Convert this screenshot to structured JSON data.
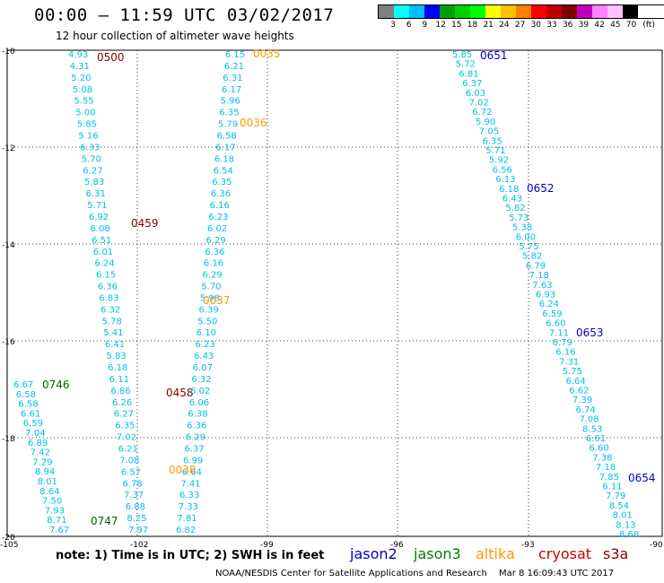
{
  "header": {
    "title": "00:00 – 11:59 UTC 03/02/2017",
    "subtitle": "12 hour collection of altimeter wave heights"
  },
  "legend": {
    "unit": "(ft)",
    "colors": [
      "#808080",
      "#00ffff",
      "#00bfff",
      "#0000ff",
      "#00a000",
      "#00d000",
      "#00ff00",
      "#ffff00",
      "#ffc000",
      "#ff8000",
      "#ff0000",
      "#c00000",
      "#800000",
      "#c000c0",
      "#ff80ff",
      "#ffc0ff",
      "#000000"
    ],
    "labels": [
      "3",
      "6",
      "9",
      "12",
      "15",
      "18",
      "21",
      "24",
      "27",
      "30",
      "33",
      "36",
      "39",
      "42",
      "45",
      "70"
    ]
  },
  "axes": {
    "lat_labels": [
      "-10",
      "-12",
      "-14",
      "-16",
      "-18",
      "-20"
    ],
    "lon_labels": [
      "-105",
      "-102",
      "-99",
      "-96",
      "-93",
      "-90"
    ]
  },
  "tracks": [
    {
      "time_labels": [
        {
          "text": "0500",
          "color": "#800000"
        },
        {
          "text": "0459",
          "color": "#800000"
        },
        {
          "text": "0458",
          "color": "#800000"
        }
      ],
      "values": [
        "4.93",
        "4.31",
        "5.20",
        "5.08",
        "5.55",
        "5.00",
        "5.85",
        "5.16",
        "6.33",
        "5.70",
        "6.27",
        "5.83",
        "6.31",
        "5.71",
        "6.92",
        "6.08",
        "6.51",
        "6.01",
        "6.24",
        "6.15",
        "6.36",
        "6.83",
        "6.32",
        "5.78",
        "5.41",
        "6.41",
        "5.83",
        "6.18",
        "6.11",
        "6.86",
        "6.26",
        "6.27",
        "6.35",
        "7.02",
        "6.21",
        "7.08",
        "6.57",
        "6.78",
        "7.37",
        "6.88",
        "8.25",
        "7.97"
      ]
    },
    {
      "time_labels": [
        {
          "text": "0035",
          "color": "#ff9900"
        },
        {
          "text": "0036",
          "color": "#ff9900"
        },
        {
          "text": "0037",
          "color": "#ff9900"
        },
        {
          "text": "0038",
          "color": "#ff9900"
        }
      ],
      "values": [
        "6.15",
        "6.21",
        "6.31",
        "6.17",
        "5.96",
        "6.35",
        "5.79",
        "6.58",
        "6.17",
        "6.18",
        "6.54",
        "6.35",
        "6.36",
        "6.16",
        "6.23",
        "6.02",
        "6.29",
        "6.36",
        "6.16",
        "6.29",
        "5.70",
        "5.98",
        "6.39",
        "5.50",
        "6.10",
        "6.23",
        "6.43",
        "6.07",
        "6.32",
        "6.02",
        "6.06",
        "6.38",
        "6.36",
        "6.29",
        "6.37",
        "6.99",
        "6.64",
        "7.41",
        "6.33",
        "7.33",
        "7.81",
        "6.82"
      ]
    },
    {
      "time_labels": [
        {
          "text": "0746",
          "color": "#006600"
        },
        {
          "text": "0747",
          "color": "#006600"
        }
      ],
      "values": [
        "6.67",
        "6.58",
        "6.58",
        "6.61",
        "6.59",
        "7.04",
        "6.89",
        "7.42",
        "7.29",
        "8.94",
        "8.01",
        "8.64",
        "7.50",
        "7.93",
        "8.71",
        "7.67"
      ]
    },
    {
      "time_labels": [
        {
          "text": "0651",
          "color": "#0000cc"
        },
        {
          "text": "0652",
          "color": "#0000cc"
        },
        {
          "text": "0653",
          "color": "#0000cc"
        },
        {
          "text": "0654",
          "color": "#0000cc"
        }
      ],
      "values": [
        "5.85",
        "5.72",
        "6.81",
        "6.37",
        "6.03",
        "7.02",
        "6.72",
        "5.90",
        "7.05",
        "6.35",
        "5.71",
        "5.92",
        "6.56",
        "6.13",
        "6.18",
        "6.43",
        "5.82",
        "5.73",
        "5.38",
        "6.00",
        "5.75",
        "5.82",
        "6.79",
        "7.18",
        "7.63",
        "6.93",
        "6.24",
        "6.59",
        "6.60",
        "7.11",
        "6.79",
        "6.16",
        "7.31",
        "5.75",
        "6.64",
        "6.62",
        "7.39",
        "6.74",
        "7.08",
        "8.53",
        "6.61",
        "6.60",
        "7.38",
        "7.18",
        "7.85",
        "6.11",
        "7.79",
        "8.54",
        "8.01",
        "8.13",
        "8.68"
      ]
    }
  ],
  "footer": {
    "note": "note: 1) Time is in UTC; 2) SWH is in feet",
    "satellites": [
      {
        "name": "jason2",
        "color": "#0000cc"
      },
      {
        "name": "jason3",
        "color": "#008000"
      },
      {
        "name": "altika",
        "color": "#ff9900"
      },
      {
        "name": "cryosat",
        "color": "#cc0000"
      },
      {
        "name": "s3a",
        "color": "#800000"
      }
    ],
    "credit": "NOAA/NESDIS Center for Satellite Applications and Research",
    "timestamp": "Mar  8 16:09:43 UTC 2017"
  }
}
